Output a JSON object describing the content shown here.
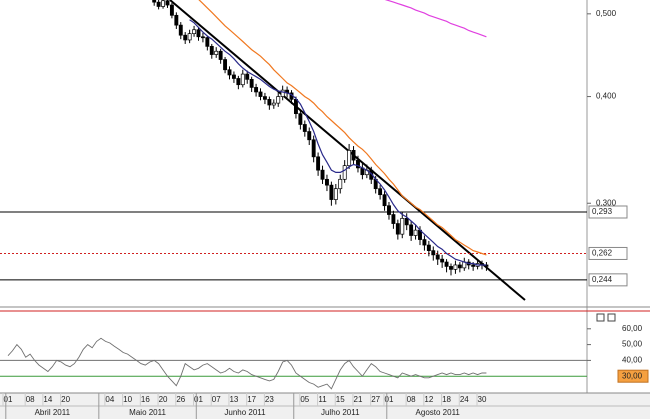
{
  "chart_data": {
    "type": "candlestick",
    "log": true,
    "ylim": [
      0.228,
      0.519
    ],
    "yticks": [
      {
        "value": 0.5,
        "label": "0,500"
      },
      {
        "value": 0.4,
        "label": "0,400"
      },
      {
        "value": 0.3,
        "label": "0,300"
      }
    ],
    "levels": [
      {
        "value": 0.293,
        "label": "0,293",
        "color": "#000000",
        "label_color": "#c0392b",
        "dashed": false
      },
      {
        "value": 0.262,
        "label": "0,262",
        "color": "#d02020",
        "label_color": "#000000",
        "dashed": true
      },
      {
        "value": 0.244,
        "label": "0,244",
        "color": "#000000",
        "label_color": "#c0392b",
        "dashed": false
      }
    ],
    "months": [
      {
        "name": "Abril 2011",
        "days": [
          "01",
          null,
          null,
          null,
          null,
          "08",
          null,
          null,
          null,
          "14",
          null,
          null,
          null,
          "20",
          null,
          null,
          null,
          null,
          null,
          null,
          null
        ]
      },
      {
        "name": "Maio 2011",
        "days": [
          null,
          null,
          "04",
          null,
          null,
          null,
          "10",
          null,
          null,
          null,
          "16",
          null,
          null,
          null,
          "20",
          null,
          null,
          null,
          "26",
          null,
          null,
          null
        ]
      },
      {
        "name": "Junho 2011",
        "days": [
          "01",
          null,
          null,
          null,
          "07",
          null,
          null,
          null,
          "13",
          null,
          null,
          null,
          "17",
          null,
          null,
          null,
          "23",
          null,
          null,
          null,
          null,
          null
        ]
      },
      {
        "name": "Julho 2011",
        "days": [
          null,
          null,
          "05",
          null,
          null,
          null,
          "11",
          null,
          null,
          null,
          "15",
          null,
          null,
          null,
          "21",
          null,
          null,
          null,
          "27",
          null,
          null
        ]
      },
      {
        "name": "Agosto 2011",
        "days": [
          "01",
          null,
          null,
          null,
          null,
          "08",
          null,
          null,
          null,
          "12",
          null,
          null,
          null,
          "18",
          null,
          null,
          null,
          "24",
          null,
          null,
          null,
          "30",
          null
        ]
      }
    ],
    "ohlc": [
      null,
      null,
      null,
      null,
      null,
      null,
      null,
      null,
      null,
      null,
      null,
      null,
      null,
      null,
      null,
      null,
      null,
      null,
      null,
      null,
      null,
      null,
      null,
      null,
      null,
      null,
      null,
      null,
      null,
      null,
      null,
      null,
      null,
      [
        0.519,
        0.524,
        0.511,
        0.516
      ],
      [
        0.516,
        0.519,
        0.506,
        0.51
      ],
      [
        0.51,
        0.522,
        0.507,
        0.518
      ],
      [
        0.518,
        0.521,
        0.508,
        0.512
      ],
      [
        0.512,
        0.515,
        0.494,
        0.498
      ],
      [
        0.498,
        0.502,
        0.48,
        0.485
      ],
      [
        0.485,
        0.489,
        0.467,
        0.472
      ],
      [
        0.472,
        0.476,
        0.461,
        0.466
      ],
      [
        0.466,
        0.479,
        0.462,
        0.474
      ],
      [
        0.474,
        0.484,
        0.47,
        0.479
      ],
      [
        0.479,
        0.482,
        0.465,
        0.47
      ],
      [
        0.47,
        0.475,
        0.463,
        0.469
      ],
      [
        0.469,
        0.471,
        0.453,
        0.458
      ],
      [
        0.458,
        0.461,
        0.443,
        0.448
      ],
      [
        0.448,
        0.457,
        0.444,
        0.452
      ],
      [
        0.452,
        0.455,
        0.437,
        0.442
      ],
      [
        0.442,
        0.445,
        0.426,
        0.43
      ],
      [
        0.43,
        0.434,
        0.419,
        0.424
      ],
      [
        0.424,
        0.428,
        0.415,
        0.42
      ],
      [
        0.42,
        0.423,
        0.408,
        0.413
      ],
      [
        0.413,
        0.43,
        0.41,
        0.425
      ],
      [
        0.425,
        0.429,
        0.414,
        0.419
      ],
      [
        0.419,
        0.422,
        0.405,
        0.41
      ],
      [
        0.41,
        0.414,
        0.4,
        0.405
      ],
      [
        0.405,
        0.409,
        0.396,
        0.4
      ],
      [
        0.4,
        0.404,
        0.392,
        0.397
      ],
      [
        0.397,
        0.4,
        0.386,
        0.391
      ],
      [
        0.391,
        0.397,
        0.387,
        0.393
      ],
      [
        0.393,
        0.405,
        0.389,
        0.4
      ],
      [
        0.4,
        0.412,
        0.396,
        0.407
      ],
      [
        0.407,
        0.411,
        0.399,
        0.404
      ],
      [
        0.404,
        0.407,
        0.392,
        0.397
      ],
      [
        0.397,
        0.4,
        0.377,
        0.382
      ],
      [
        0.382,
        0.385,
        0.366,
        0.371
      ],
      [
        0.371,
        0.375,
        0.359,
        0.364
      ],
      [
        0.364,
        0.368,
        0.351,
        0.356
      ],
      [
        0.356,
        0.36,
        0.335,
        0.34
      ],
      [
        0.34,
        0.344,
        0.323,
        0.328
      ],
      [
        0.328,
        0.332,
        0.316,
        0.32
      ],
      [
        0.32,
        0.324,
        0.31,
        0.315
      ],
      [
        0.315,
        0.318,
        0.298,
        0.303
      ],
      [
        0.303,
        0.316,
        0.299,
        0.312
      ],
      [
        0.312,
        0.324,
        0.308,
        0.32
      ],
      [
        0.32,
        0.337,
        0.317,
        0.332
      ],
      [
        0.332,
        0.352,
        0.329,
        0.346
      ],
      [
        0.346,
        0.35,
        0.333,
        0.337
      ],
      [
        0.337,
        0.341,
        0.326,
        0.33
      ],
      [
        0.33,
        0.334,
        0.32,
        0.324
      ],
      [
        0.324,
        0.333,
        0.321,
        0.328
      ],
      [
        0.328,
        0.331,
        0.316,
        0.32
      ],
      [
        0.32,
        0.323,
        0.308,
        0.312
      ],
      [
        0.312,
        0.315,
        0.303,
        0.307
      ],
      [
        0.307,
        0.31,
        0.294,
        0.298
      ],
      [
        0.298,
        0.301,
        0.287,
        0.291
      ],
      [
        0.291,
        0.294,
        0.28,
        0.284
      ],
      [
        0.284,
        0.287,
        0.272,
        0.276
      ],
      [
        0.276,
        0.293,
        0.273,
        0.288
      ],
      [
        0.288,
        0.292,
        0.279,
        0.283
      ],
      [
        0.283,
        0.286,
        0.271,
        0.275
      ],
      [
        0.275,
        0.283,
        0.272,
        0.279
      ],
      [
        0.279,
        0.282,
        0.268,
        0.272
      ],
      [
        0.272,
        0.275,
        0.264,
        0.268
      ],
      [
        0.268,
        0.271,
        0.26,
        0.264
      ],
      [
        0.264,
        0.267,
        0.257,
        0.261
      ],
      [
        0.261,
        0.264,
        0.254,
        0.258
      ],
      [
        0.258,
        0.261,
        0.252,
        0.256
      ],
      [
        0.256,
        0.258,
        0.249,
        0.253
      ],
      [
        0.253,
        0.255,
        0.247,
        0.251
      ],
      [
        0.251,
        0.257,
        0.248,
        0.254
      ],
      [
        0.254,
        0.256,
        0.249,
        0.252
      ],
      [
        0.252,
        0.259,
        0.25,
        0.256
      ],
      [
        0.256,
        0.258,
        0.251,
        0.254
      ],
      [
        0.254,
        0.256,
        0.25,
        0.253
      ],
      [
        0.253,
        0.258,
        0.251,
        0.255
      ],
      [
        0.255,
        0.257,
        0.251,
        0.254
      ],
      [
        0.254,
        0.256,
        0.25,
        0.253
      ]
    ],
    "lines": [
      {
        "color": "#2a2a8a",
        "values": [
          null,
          null,
          null,
          null,
          null,
          null,
          null,
          null,
          null,
          null,
          null,
          null,
          null,
          null,
          null,
          null,
          null,
          null,
          null,
          null,
          null,
          null,
          null,
          null,
          null,
          null,
          null,
          null,
          null,
          null,
          null,
          null,
          null,
          null,
          null,
          null,
          null,
          null,
          null,
          null,
          null,
          0.492,
          0.488,
          0.482,
          0.476,
          0.471,
          0.467,
          0.462,
          0.457,
          0.452,
          0.448,
          0.443,
          0.437,
          0.432,
          0.428,
          0.425,
          0.422,
          0.419,
          0.415,
          0.411,
          0.408,
          0.406,
          0.405,
          0.404,
          0.402,
          0.398,
          0.392,
          0.383,
          0.374,
          0.364,
          0.352,
          0.342,
          0.335,
          0.328,
          0.326,
          0.326,
          0.328,
          0.331,
          0.333,
          0.332,
          0.33,
          0.328,
          0.325,
          0.32,
          0.316,
          0.311,
          0.305,
          0.299,
          0.294,
          0.291,
          0.289,
          0.286,
          0.283,
          0.279,
          0.276,
          0.273,
          0.27,
          0.267,
          0.265,
          0.262,
          0.26,
          0.258,
          0.257,
          0.256,
          0.255,
          0.255,
          0.254,
          0.254,
          0.254
        ]
      },
      {
        "color": "#f07820",
        "values": [
          null,
          null,
          null,
          null,
          null,
          null,
          null,
          null,
          null,
          null,
          null,
          null,
          null,
          null,
          null,
          null,
          null,
          null,
          null,
          null,
          null,
          null,
          null,
          null,
          null,
          null,
          null,
          null,
          null,
          null,
          null,
          null,
          null,
          null,
          null,
          null,
          null,
          null,
          null,
          null,
          null,
          null,
          null,
          0.52,
          0.514,
          0.508,
          0.502,
          0.496,
          0.49,
          0.484,
          0.479,
          0.474,
          0.469,
          0.464,
          0.459,
          0.454,
          0.45,
          0.446,
          0.441,
          0.436,
          0.43,
          0.425,
          0.42,
          0.415,
          0.412,
          0.408,
          0.404,
          0.4,
          0.397,
          0.393,
          0.388,
          0.384,
          0.379,
          0.375,
          0.371,
          0.367,
          0.363,
          0.358,
          0.354,
          0.35,
          0.347,
          0.343,
          0.338,
          0.333,
          0.329,
          0.325,
          0.32,
          0.316,
          0.311,
          0.306,
          0.303,
          0.3,
          0.297,
          0.295,
          0.292,
          0.289,
          0.286,
          0.283,
          0.281,
          0.278,
          0.275,
          0.272,
          0.27,
          0.268,
          0.266,
          0.264,
          0.263,
          0.262,
          0.261
        ]
      },
      {
        "color": "#e040e0",
        "values": [
          null,
          null,
          null,
          null,
          null,
          null,
          null,
          null,
          null,
          null,
          null,
          null,
          null,
          null,
          null,
          null,
          null,
          null,
          null,
          null,
          null,
          null,
          null,
          null,
          null,
          null,
          null,
          null,
          null,
          null,
          null,
          null,
          null,
          null,
          null,
          null,
          null,
          null,
          null,
          null,
          null,
          null,
          null,
          null,
          null,
          null,
          null,
          null,
          null,
          null,
          null,
          null,
          null,
          null,
          null,
          null,
          null,
          null,
          null,
          null,
          null,
          null,
          null,
          null,
          null,
          null,
          null,
          null,
          null,
          null,
          null,
          null,
          null,
          null,
          null,
          null,
          null,
          null,
          null,
          null,
          null,
          null,
          null,
          null,
          0.522,
          0.52,
          0.518,
          0.516,
          0.514,
          0.512,
          0.51,
          0.508,
          0.505,
          0.503,
          0.501,
          0.498,
          0.496,
          0.494,
          0.492,
          0.49,
          0.487,
          0.485,
          0.483,
          0.481,
          0.478,
          0.476,
          0.474,
          0.472,
          0.47
        ]
      }
    ],
    "indicator": {
      "color": "#707070",
      "ylim": [
        20,
        70
      ],
      "yticks": [
        {
          "value": 60,
          "label": "60,00"
        },
        {
          "value": 50,
          "label": "50,00"
        },
        {
          "value": 40,
          "label": "40,00"
        }
      ],
      "levels": [
        {
          "value": 40,
          "color": "#707070"
        },
        {
          "value": 30,
          "label": "30,00",
          "color": "#3a9a3a",
          "label_fill": "#f5a040"
        }
      ],
      "values": [
        43,
        46,
        50,
        47,
        42,
        44,
        40,
        37,
        35,
        33,
        36,
        40,
        39,
        37,
        36,
        38,
        42,
        47,
        50,
        48,
        52,
        54,
        52,
        51,
        49,
        47,
        45,
        44,
        42,
        40,
        38,
        37,
        39,
        40,
        38,
        34,
        30,
        27,
        24,
        30,
        38,
        36,
        34,
        35,
        37,
        38,
        36,
        34,
        32,
        33,
        35,
        33,
        32,
        34,
        33,
        31,
        30,
        29,
        28,
        27,
        28,
        33,
        39,
        40,
        37,
        32,
        30,
        28,
        26,
        25,
        23,
        24,
        25,
        22,
        28,
        34,
        38,
        40,
        36,
        33,
        30,
        34,
        38,
        36,
        33,
        32,
        31,
        30,
        29,
        32,
        31,
        30,
        31,
        30,
        29,
        29,
        30,
        31,
        32,
        31,
        32,
        31,
        31,
        32,
        31,
        32,
        31,
        32,
        32
      ]
    }
  }
}
